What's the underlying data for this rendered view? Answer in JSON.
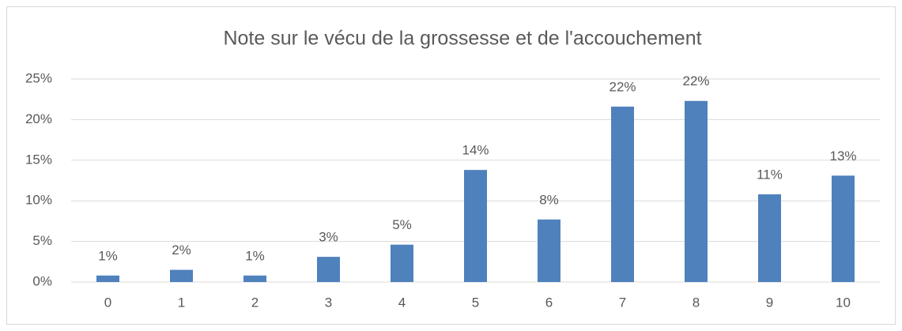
{
  "chart_data": {
    "type": "bar",
    "title": "Note sur le vécu de la grossesse et de l'accouchement",
    "categories": [
      "0",
      "1",
      "2",
      "3",
      "4",
      "5",
      "6",
      "7",
      "8",
      "9",
      "10"
    ],
    "values": [
      0.8,
      1.5,
      0.8,
      3.1,
      4.6,
      13.8,
      7.7,
      21.6,
      22.3,
      10.8,
      13.1
    ],
    "value_labels": [
      "1%",
      "2%",
      "1%",
      "3%",
      "5%",
      "14%",
      "8%",
      "22%",
      "22%",
      "11%",
      "13%"
    ],
    "color": "#4f81bd",
    "ylim": [
      0,
      25
    ],
    "yticks": [
      {
        "value": 0,
        "label": "0%"
      },
      {
        "value": 5,
        "label": "5%"
      },
      {
        "value": 10,
        "label": "10%"
      },
      {
        "value": 15,
        "label": "15%"
      },
      {
        "value": 20,
        "label": "20%"
      },
      {
        "value": 25,
        "label": "25%"
      }
    ],
    "grid": true
  }
}
